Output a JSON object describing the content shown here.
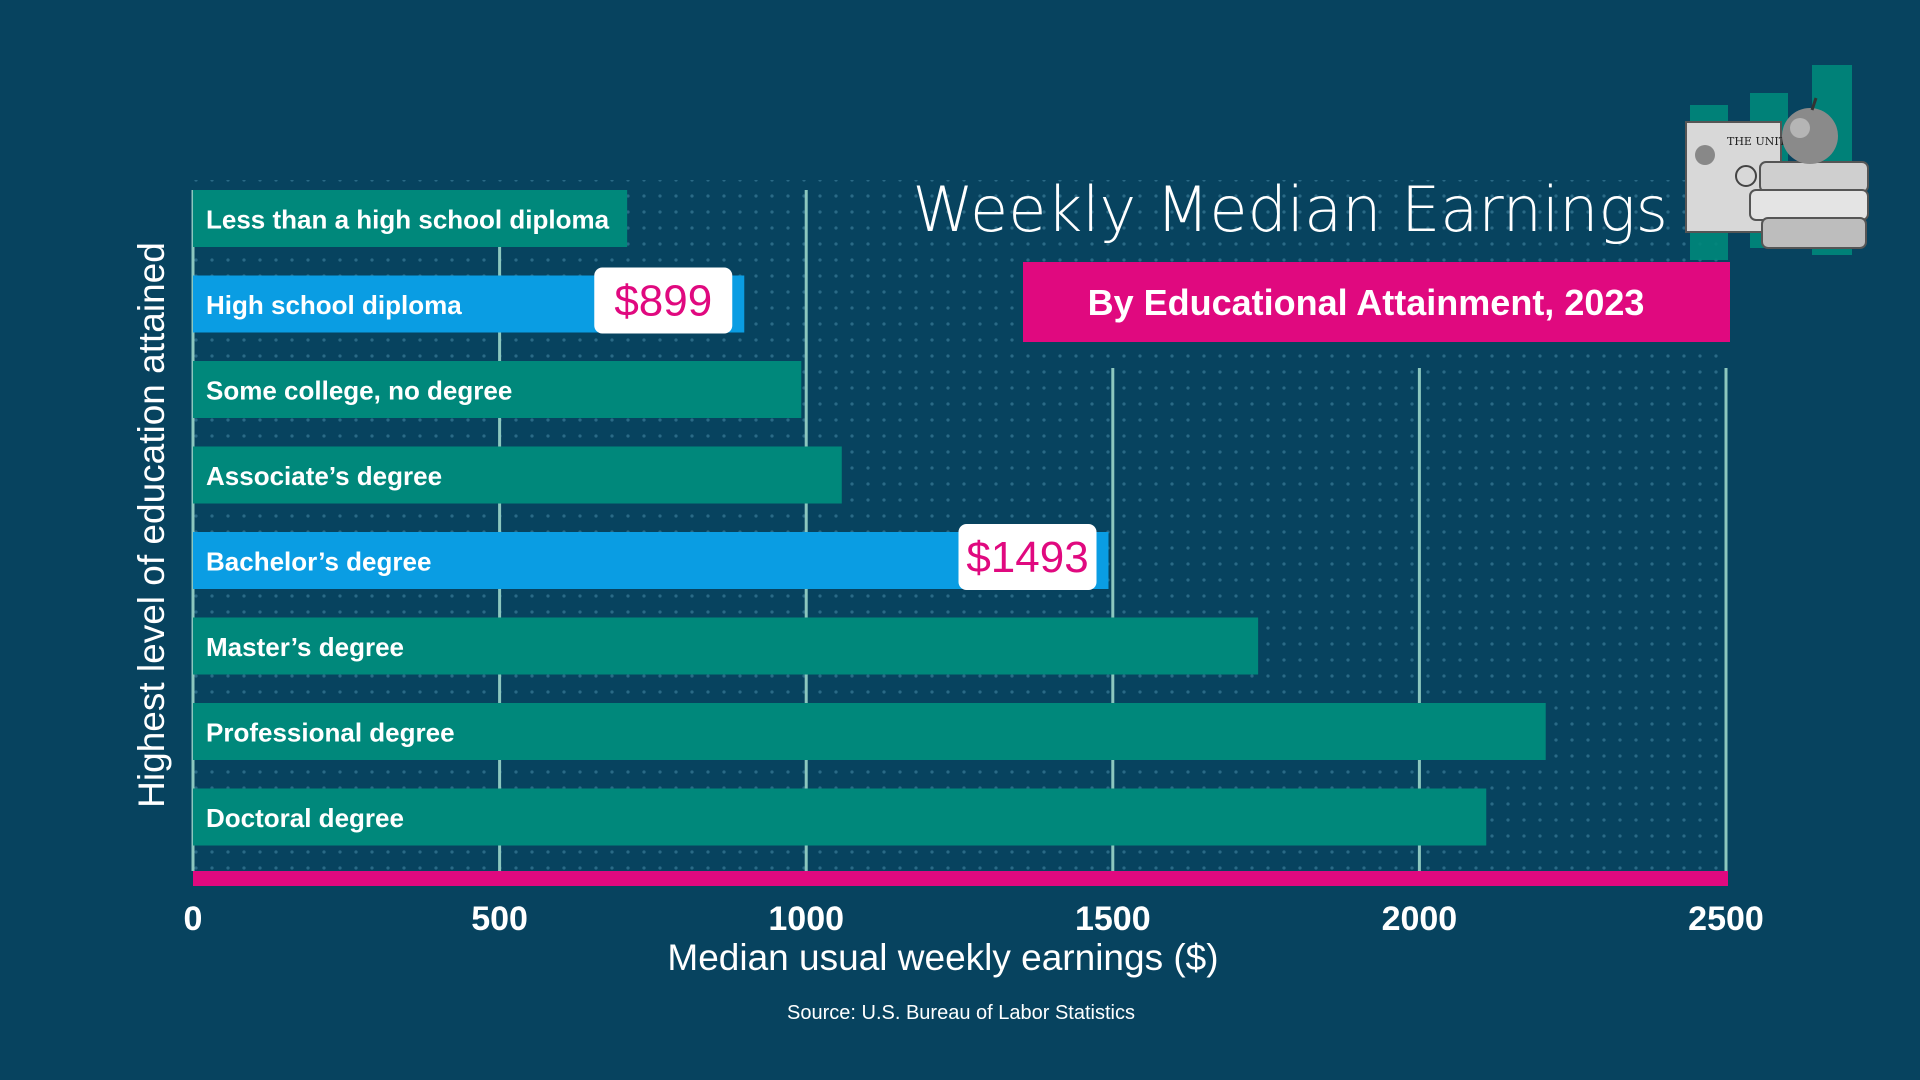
{
  "colors": {
    "background": "#07435f",
    "bar": "#00887b",
    "highlight_bar": "#0a9de3",
    "accent": "#e0097f",
    "gridline": "#8cc7be",
    "text": "#ffffff"
  },
  "decoration": {
    "illustration_icon": "money-apple-books-icon"
  },
  "chart_data": {
    "type": "bar",
    "orientation": "horizontal",
    "title": "Weekly Median Earnings",
    "subtitle": "By Educational Attainment, 2023",
    "xlabel": "Median usual weekly earnings ($)",
    "ylabel": "Highest level of education attained",
    "source": "Source: U.S. Bureau of Labor Statistics",
    "xlim": [
      0,
      2500
    ],
    "xticks": [
      "0",
      "500",
      "1000",
      "1500",
      "2000",
      "2500"
    ],
    "grid": "vertical",
    "categories": [
      "Less than a high school diploma",
      "High school diploma",
      "Some college, no degree",
      "Associate’s degree",
      "Bachelor’s degree",
      "Master’s degree",
      "Professional degree",
      "Doctoral degree"
    ],
    "values": [
      708,
      899,
      992,
      1058,
      1493,
      1737,
      2206,
      2109
    ],
    "highlighted": [
      false,
      true,
      false,
      false,
      true,
      false,
      false,
      false
    ],
    "callouts": [
      "",
      "$899",
      "",
      "",
      "$1493",
      "",
      "",
      ""
    ]
  }
}
